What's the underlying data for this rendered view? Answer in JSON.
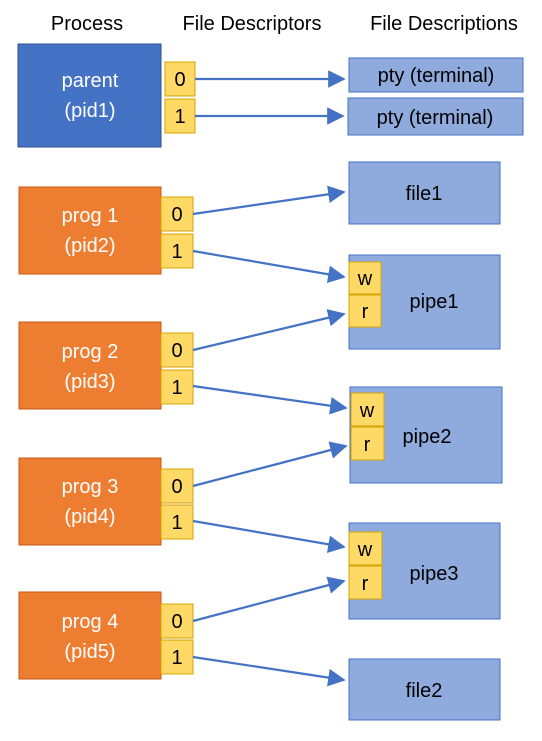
{
  "headers": {
    "process": "Process",
    "fds": "File Descriptors",
    "descriptions": "File Descriptions"
  },
  "processes": {
    "parent": {
      "line1": "parent",
      "line2": "(pid1)",
      "fd0": "0",
      "fd1": "1",
      "color": "#4472C4"
    },
    "prog1": {
      "line1": "prog 1",
      "line2": "(pid2)",
      "fd0": "0",
      "fd1": "1",
      "color": "#ED7D31"
    },
    "prog2": {
      "line1": "prog 2",
      "line2": "(pid3)",
      "fd0": "0",
      "fd1": "1",
      "color": "#ED7D31"
    },
    "prog3": {
      "line1": "prog 3",
      "line2": "(pid4)",
      "fd0": "0",
      "fd1": "1",
      "color": "#ED7D31"
    },
    "prog4": {
      "line1": "prog 4",
      "line2": "(pid5)",
      "fd0": "0",
      "fd1": "1",
      "color": "#ED7D31"
    }
  },
  "descriptions": {
    "pty1": {
      "label": "pty (terminal)"
    },
    "pty2": {
      "label": "pty (terminal)"
    },
    "file1": {
      "label": "file1"
    },
    "pipe1": {
      "label": "pipe1",
      "w": "w",
      "r": "r"
    },
    "pipe2": {
      "label": "pipe2",
      "w": "w",
      "r": "r"
    },
    "pipe3": {
      "label": "pipe3",
      "w": "w",
      "r": "r"
    },
    "file2": {
      "label": "file2"
    }
  },
  "colors": {
    "description_fill": "#8FAADC",
    "description_stroke": "#4472C4",
    "fd_fill": "#FFD966",
    "fd_stroke": "#D6A400",
    "arrow": "#4472C4"
  }
}
